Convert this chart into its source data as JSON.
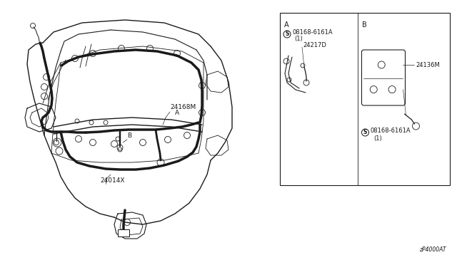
{
  "bg_color": "#ffffff",
  "fig_width": 6.4,
  "fig_height": 3.72,
  "dpi": 100,
  "diagram_code": "zP4000AT",
  "line_color": "#1a1a1a",
  "text_color": "#1a1a1a",
  "thin": 0.6,
  "medium": 1.0,
  "thick": 2.5,
  "fs_small": 6.5,
  "fs_tiny": 5.5,
  "inset_label_A1": "08168-6161A",
  "inset_label_A1b": "(1)",
  "inset_label_A2": "24217D",
  "inset_label_B1": "24136M",
  "inset_label_B2": "08168-6161A",
  "inset_label_B2b": "(1)",
  "label_24168M": "24168M",
  "label_A": "A",
  "label_B": "B",
  "label_24014X": "24014X"
}
